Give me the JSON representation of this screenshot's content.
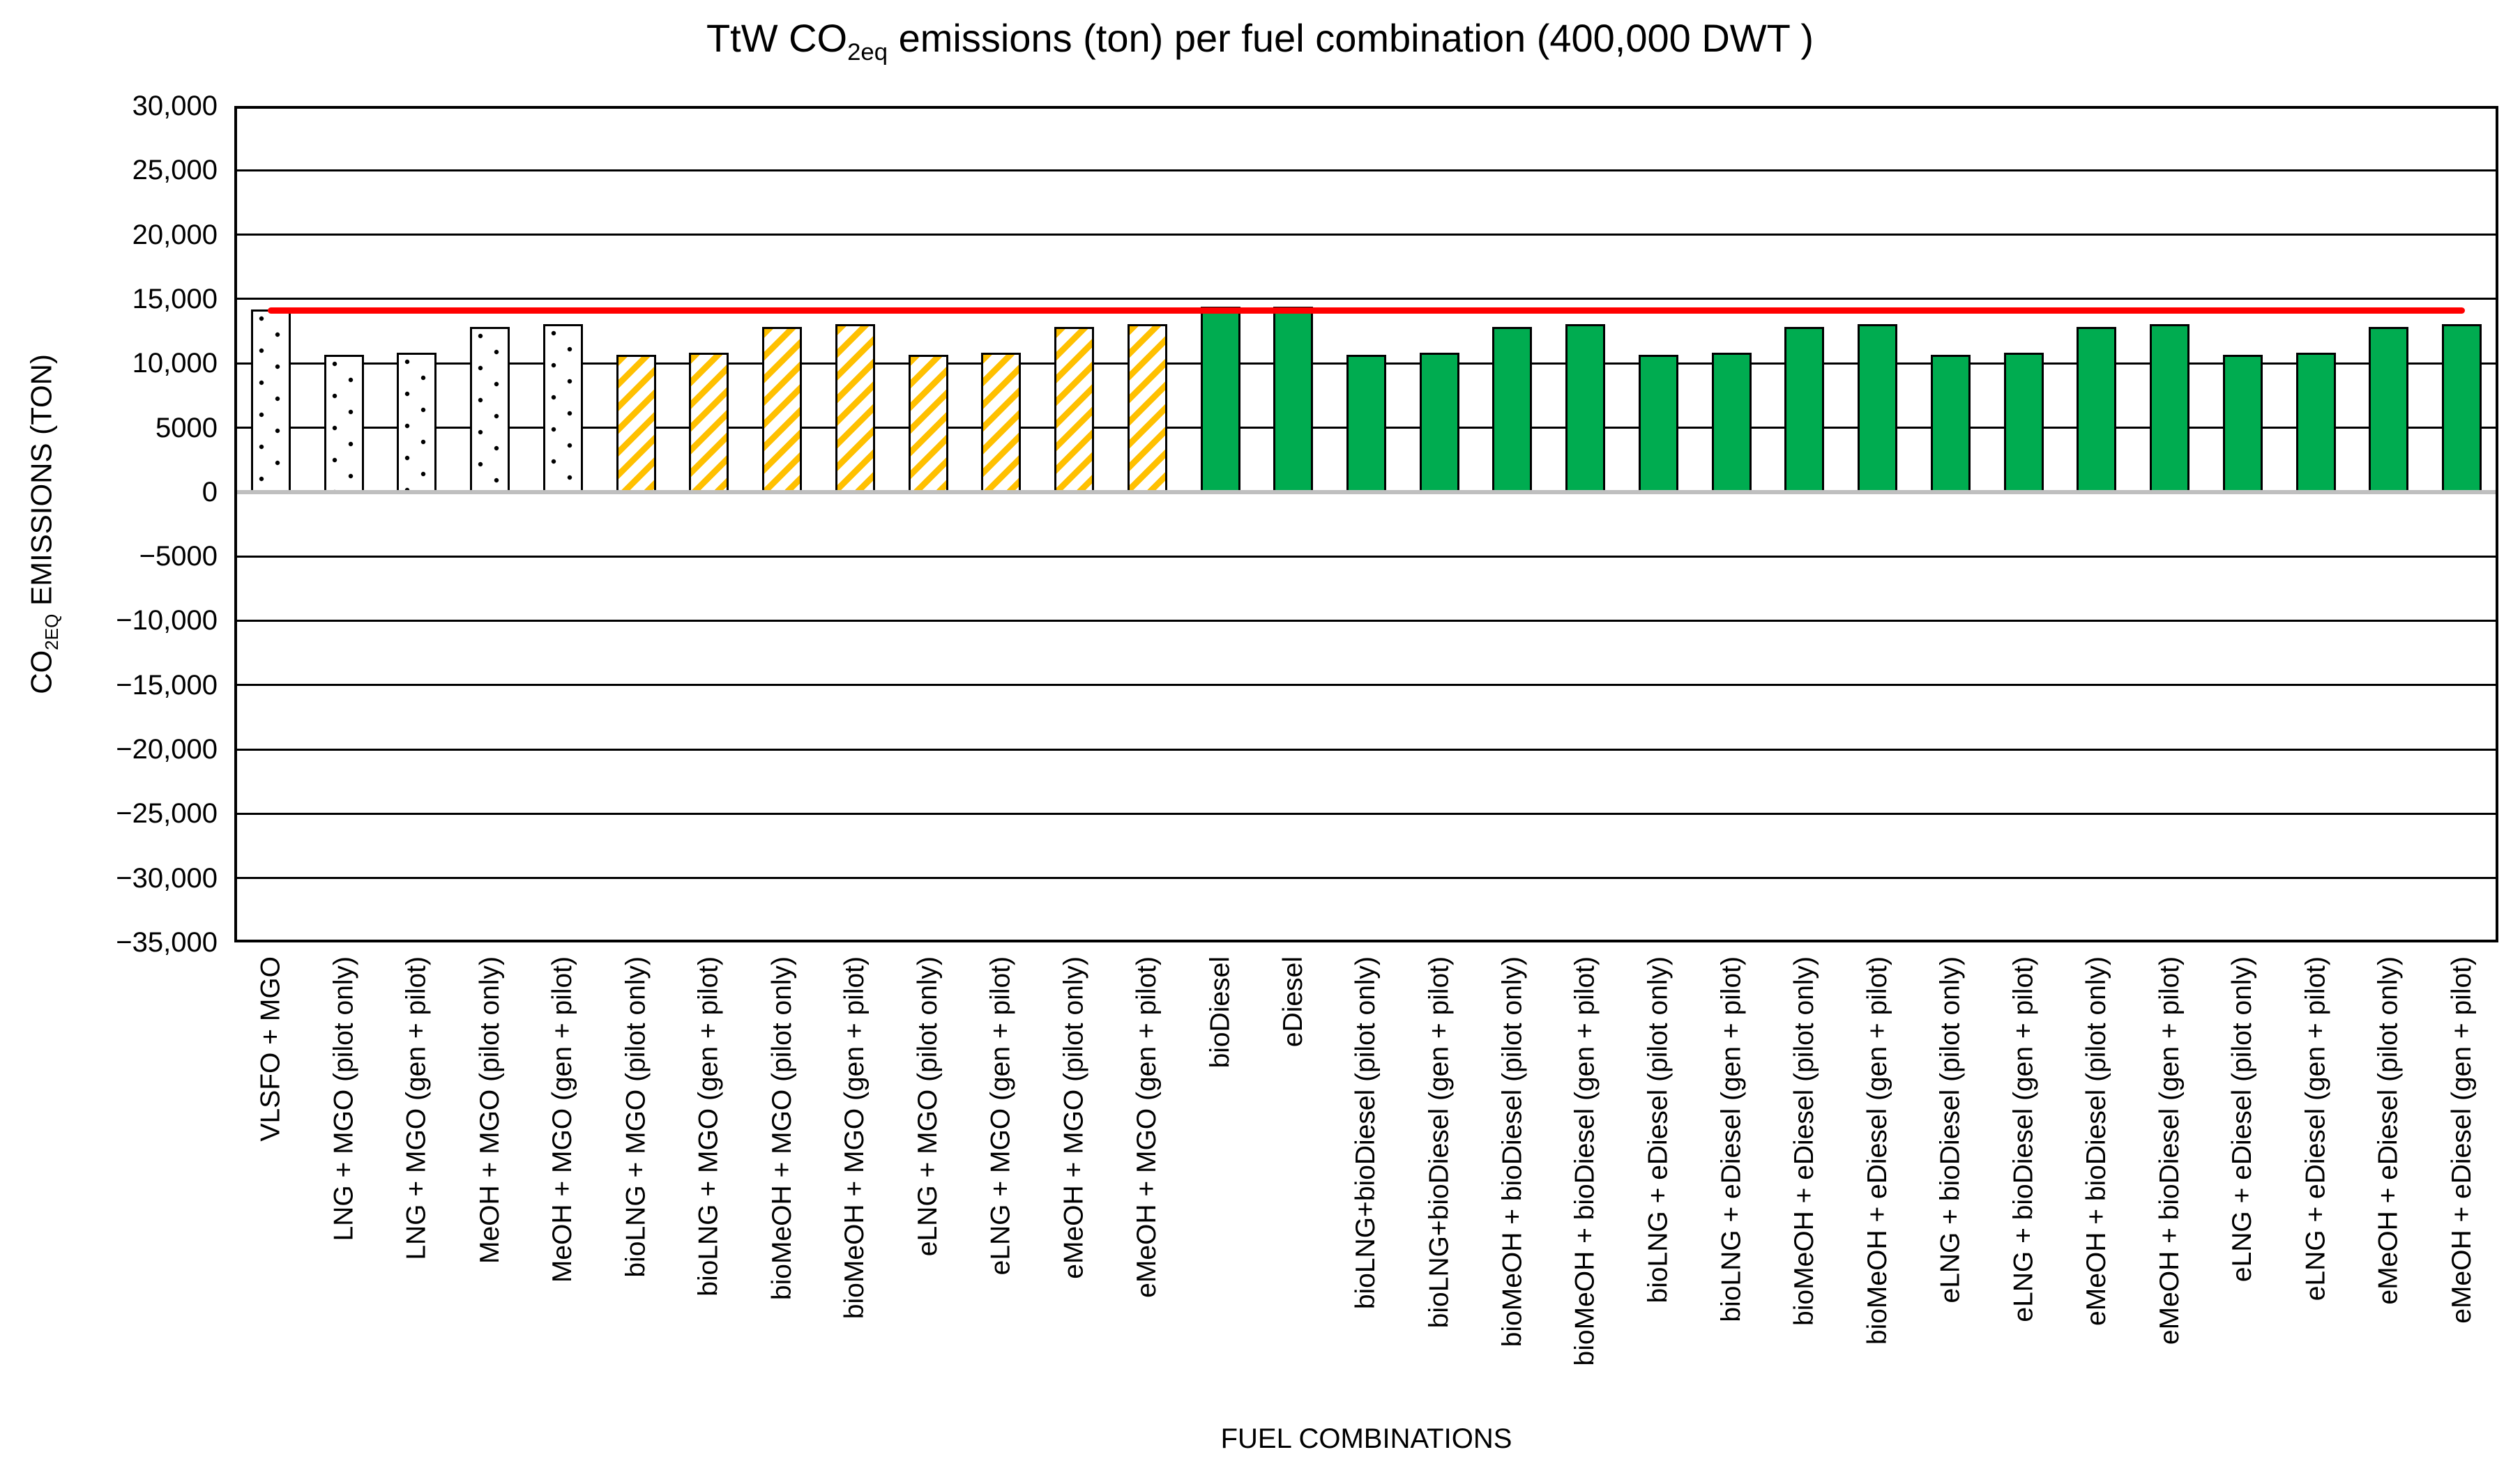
{
  "chart_data": {
    "type": "bar",
    "title": {
      "prefix": "TtW CO",
      "sub": "2eq",
      "suffix": " emissions (ton) per fuel combination (400,000 DWT )"
    },
    "xlabel": "FUEL COMBINATIONS",
    "ylabel": {
      "prefix": "CO",
      "sub": "2EQ",
      "suffix": "  EMISSIONS (TON)"
    },
    "axis": {
      "ymax": 30000,
      "ymin": -35000,
      "ytick_values": [
        30000,
        25000,
        20000,
        15000,
        10000,
        5000,
        0,
        -5000,
        -10000,
        -15000,
        -20000,
        -25000,
        -30000,
        -35000
      ],
      "ytick_labels": [
        "30,000",
        "25,000",
        "20,000",
        "15,000",
        "10,000",
        "5000",
        "0",
        "−5000",
        "−10,000",
        "−15,000",
        "−20,000",
        "−25,000",
        "−30,000",
        "−35,000"
      ],
      "grid": true
    },
    "categories": [
      "VLSFO + MGO",
      "LNG + MGO (pilot only)",
      "LNG + MGO (gen + pilot)",
      "MeOH + MGO (pilot only)",
      "MeOH + MGO (gen + pilot)",
      "bioLNG + MGO (pilot only)",
      "bioLNG + MGO (gen + pilot)",
      "bioMeOH + MGO (pilot only)",
      "bioMeOH + MGO (gen + pilot)",
      "eLNG + MGO (pilot only)",
      "eLNG + MGO (gen + pilot)",
      "eMeOH + MGO (pilot only)",
      "eMeOH + MGO (gen + pilot)",
      "bioDiesel",
      "eDiesel",
      "bioLNG+bioDiesel (pilot only)",
      "bioLNG+bioDiesel (gen + pilot)",
      "bioMeOH + bioDiesel (pilot only)",
      "bioMeOH + bioDiesel (gen + pilot)",
      "bioLNG + eDiesel (pilot only)",
      "bioLNG + eDiesel (gen + pilot)",
      "bioMeOH + eDiesel (pilot only)",
      "bioMeOH + eDiesel (gen + pilot)",
      "eLNG + bioDiesel (pilot only)",
      "eLNG + bioDiesel (gen + pilot)",
      "eMeOH + bioDiesel (pilot only)",
      "eMeOH + bioDiesel (gen + pilot)",
      "eLNG + eDiesel (pilot only)",
      "eLNG + eDiesel (gen + pilot)",
      "eMeOH + eDiesel (pilot only)",
      "eMeOH + eDiesel (gen + pilot)"
    ],
    "values": [
      14200,
      10650,
      10800,
      12850,
      13050,
      10650,
      10800,
      12850,
      13050,
      10650,
      10800,
      12850,
      13050,
      14400,
      14400,
      10650,
      10800,
      12850,
      13050,
      10650,
      10800,
      12850,
      13050,
      10650,
      10800,
      12850,
      13050,
      10650,
      10800,
      12850,
      13050
    ],
    "bar_styles": [
      "dotted",
      "dotted",
      "dotted",
      "dotted",
      "dotted",
      "striped",
      "striped",
      "striped",
      "striped",
      "striped",
      "striped",
      "striped",
      "striped",
      "green",
      "green",
      "green",
      "green",
      "green",
      "green",
      "green",
      "green",
      "green",
      "green",
      "green",
      "green",
      "green",
      "green",
      "green",
      "green",
      "green",
      "green"
    ],
    "style_descriptions": {
      "dotted": "white fill with black dots",
      "striped": "white fill with yellow diagonal stripes",
      "green": "solid green fill"
    },
    "colors": {
      "green": "#00AC50",
      "stripe_yellow": "#FFC000",
      "reference_line": "#FF0000",
      "zero_line_gray": "#BFBFBF",
      "bar_outline": "#000000"
    },
    "reference_line": {
      "value": 14100,
      "start_category_index": 0,
      "end_category_index": 30
    }
  }
}
